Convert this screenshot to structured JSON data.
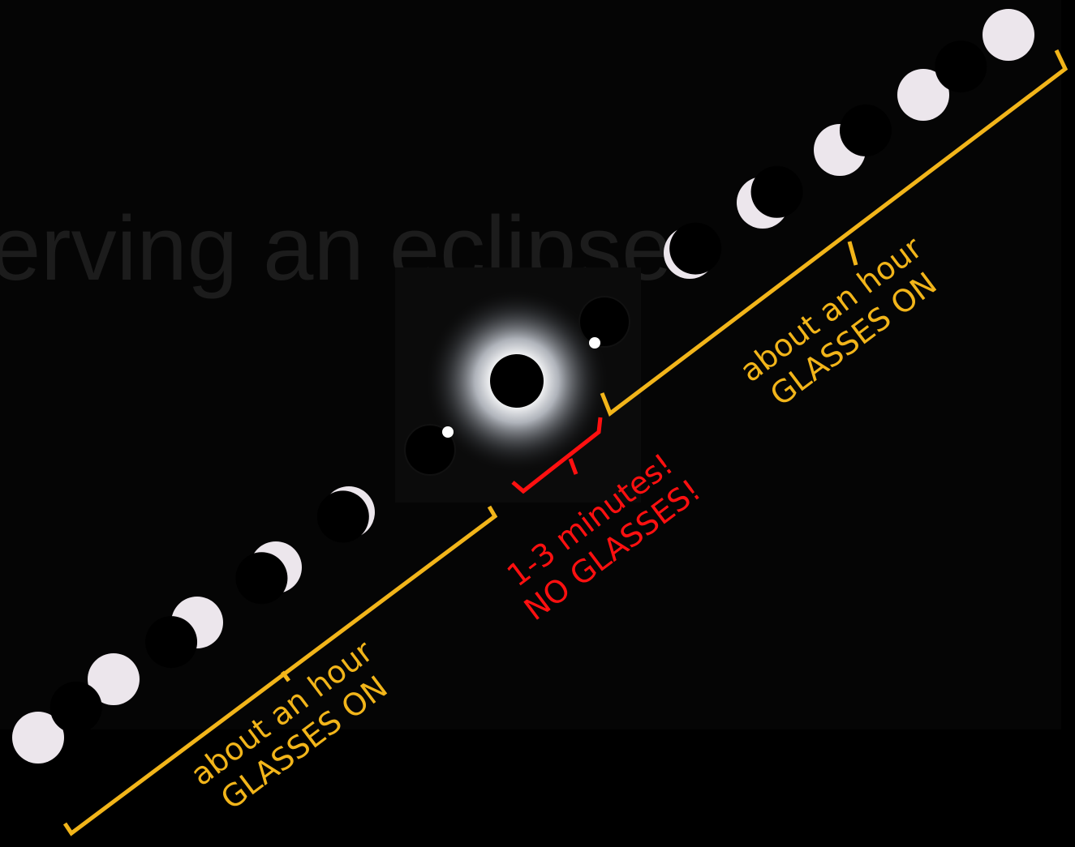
{
  "title": "erving an eclipse",
  "before": {
    "line1": "about an hour",
    "line2": "GLASSES ON"
  },
  "totality": {
    "line1": "1-3 minutes!",
    "line2": "NO GLASSES!"
  },
  "after": {
    "line1": "about an hour",
    "line2": "GLASSES ON"
  }
}
